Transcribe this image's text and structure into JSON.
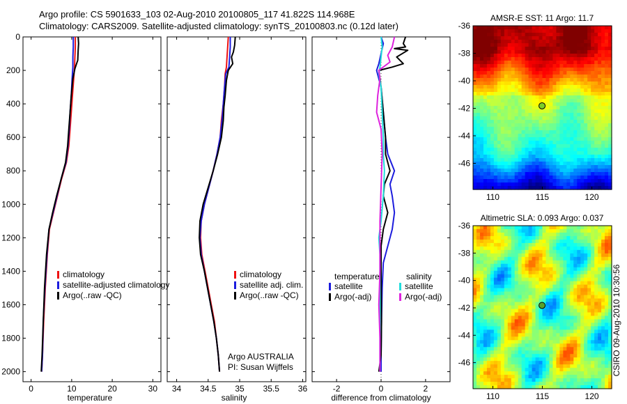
{
  "header": {
    "line1": "Argo profile: CS 5901633_103 02-Aug-2010 20100805_117 41.822S 114.968E",
    "line2": "Climatology: CARS2009. Satellite-adjusted climatology: synTS_20100803.nc (0.12d later)"
  },
  "side_label": "CSIRO 09-Aug-2010 10:30:56",
  "colors": {
    "climatology": "#ee1111",
    "satellite": "#1c1cdd",
    "argo": "#000000",
    "cyan": "#22dddd",
    "magenta": "#dd22dd"
  },
  "chart_data": [
    {
      "type": "line",
      "name": "temperature-profile",
      "xlabel": "temperature",
      "xlim": [
        -2,
        32
      ],
      "ylim": [
        2060,
        0
      ],
      "xticks": [
        "0",
        "10",
        "20",
        "30"
      ],
      "yticks": [
        "0",
        "200",
        "400",
        "600",
        "800",
        "1000",
        "1200",
        "1400",
        "1600",
        "1800",
        "2000"
      ],
      "legend": [
        "climatology",
        "satellite-adjusted climatology",
        "Argo(..raw -QC)"
      ],
      "series": [
        {
          "name": "climatology",
          "color_key": "climatology",
          "points": [
            [
              10.9,
              0
            ],
            [
              10.9,
              60
            ],
            [
              10.8,
              120
            ],
            [
              10.7,
              180
            ],
            [
              10.5,
              250
            ],
            [
              10.2,
              350
            ],
            [
              9.9,
              450
            ],
            [
              9.6,
              550
            ],
            [
              9.3,
              650
            ],
            [
              8.7,
              750
            ],
            [
              7.5,
              850
            ],
            [
              6.5,
              950
            ],
            [
              5.5,
              1050
            ],
            [
              4.5,
              1150
            ],
            [
              4.0,
              1300
            ],
            [
              3.5,
              1500
            ],
            [
              3.1,
              1700
            ],
            [
              2.8,
              1900
            ],
            [
              2.6,
              2000
            ]
          ]
        },
        {
          "name": "satellite-adjusted climatology",
          "color_key": "satellite",
          "points": [
            [
              10.4,
              0
            ],
            [
              10.4,
              60
            ],
            [
              10.3,
              120
            ],
            [
              10.3,
              180
            ],
            [
              10.1,
              250
            ],
            [
              9.9,
              350
            ],
            [
              9.6,
              450
            ],
            [
              9.4,
              550
            ],
            [
              9.1,
              650
            ],
            [
              8.6,
              750
            ],
            [
              7.4,
              850
            ],
            [
              6.4,
              950
            ],
            [
              5.4,
              1050
            ],
            [
              4.4,
              1150
            ],
            [
              3.9,
              1300
            ],
            [
              3.4,
              1500
            ],
            [
              3.0,
              1700
            ],
            [
              2.8,
              1900
            ],
            [
              2.6,
              2000
            ]
          ]
        },
        {
          "name": "Argo(..raw -QC)",
          "color_key": "argo",
          "points": [
            [
              11.6,
              0
            ],
            [
              11.7,
              40
            ],
            [
              11.6,
              80
            ],
            [
              11.5,
              140
            ],
            [
              11.2,
              160
            ],
            [
              10.8,
              190
            ],
            [
              10.3,
              250
            ],
            [
              9.9,
              350
            ],
            [
              9.6,
              450
            ],
            [
              9.3,
              550
            ],
            [
              9.0,
              650
            ],
            [
              8.5,
              750
            ],
            [
              7.4,
              850
            ],
            [
              6.3,
              950
            ],
            [
              5.3,
              1050
            ],
            [
              4.4,
              1150
            ],
            [
              3.8,
              1300
            ],
            [
              3.3,
              1500
            ],
            [
              3.0,
              1700
            ],
            [
              2.7,
              1900
            ],
            [
              2.5,
              2000
            ]
          ]
        }
      ]
    },
    {
      "type": "line",
      "name": "salinity-profile",
      "xlabel": "salinity",
      "xlim": [
        33.85,
        36.05
      ],
      "ylim": [
        2060,
        0
      ],
      "xticks": [
        "34",
        "34.5",
        "35",
        "35.5",
        "36"
      ],
      "legend": [
        "climatology",
        "satellite adj. clim.",
        "Argo(..raw -QC)"
      ],
      "annotation": [
        "Argo AUSTRALIA",
        "PI: Susan Wijffels"
      ],
      "series": [
        {
          "name": "climatology",
          "color_key": "climatology",
          "points": [
            [
              34.82,
              0
            ],
            [
              34.81,
              60
            ],
            [
              34.8,
              120
            ],
            [
              34.79,
              180
            ],
            [
              34.77,
              220
            ],
            [
              34.76,
              300
            ],
            [
              34.74,
              400
            ],
            [
              34.71,
              500
            ],
            [
              34.69,
              600
            ],
            [
              34.64,
              700
            ],
            [
              34.58,
              800
            ],
            [
              34.51,
              900
            ],
            [
              34.44,
              1000
            ],
            [
              34.39,
              1100
            ],
            [
              34.38,
              1200
            ],
            [
              34.4,
              1300
            ],
            [
              34.45,
              1400
            ],
            [
              34.5,
              1500
            ],
            [
              34.55,
              1600
            ],
            [
              34.6,
              1700
            ],
            [
              34.63,
              1800
            ],
            [
              34.66,
              1900
            ],
            [
              34.68,
              2000
            ]
          ]
        },
        {
          "name": "satellite adj. clim.",
          "color_key": "satellite",
          "points": [
            [
              34.85,
              0
            ],
            [
              34.85,
              60
            ],
            [
              34.84,
              120
            ],
            [
              34.83,
              180
            ],
            [
              34.78,
              220
            ],
            [
              34.76,
              300
            ],
            [
              34.74,
              400
            ],
            [
              34.72,
              500
            ],
            [
              34.69,
              600
            ],
            [
              34.64,
              700
            ],
            [
              34.58,
              800
            ],
            [
              34.51,
              900
            ],
            [
              34.44,
              1000
            ],
            [
              34.39,
              1100
            ],
            [
              34.37,
              1200
            ],
            [
              34.39,
              1300
            ],
            [
              34.44,
              1400
            ],
            [
              34.49,
              1500
            ],
            [
              34.54,
              1600
            ],
            [
              34.59,
              1700
            ],
            [
              34.63,
              1800
            ],
            [
              34.66,
              1900
            ],
            [
              34.68,
              2000
            ]
          ]
        },
        {
          "name": "Argo(..raw -QC)",
          "color_key": "argo",
          "points": [
            [
              34.93,
              0
            ],
            [
              34.92,
              50
            ],
            [
              34.9,
              90
            ],
            [
              34.87,
              120
            ],
            [
              34.89,
              160
            ],
            [
              34.82,
              200
            ],
            [
              34.79,
              260
            ],
            [
              34.77,
              350
            ],
            [
              34.75,
              420
            ],
            [
              34.74,
              500
            ],
            [
              34.71,
              600
            ],
            [
              34.65,
              700
            ],
            [
              34.58,
              800
            ],
            [
              34.5,
              900
            ],
            [
              34.42,
              1000
            ],
            [
              34.37,
              1100
            ],
            [
              34.36,
              1200
            ],
            [
              34.38,
              1300
            ],
            [
              34.44,
              1400
            ],
            [
              34.49,
              1500
            ],
            [
              34.54,
              1600
            ],
            [
              34.59,
              1700
            ],
            [
              34.63,
              1800
            ],
            [
              34.66,
              1900
            ],
            [
              34.68,
              2000
            ]
          ]
        }
      ]
    },
    {
      "type": "line",
      "name": "difference-profile",
      "xlabel": "difference from climatology",
      "xlim": [
        -3.1,
        3.1
      ],
      "ylim": [
        2060,
        0
      ],
      "xticks": [
        "-2",
        "0",
        "2"
      ],
      "legend_groups": [
        {
          "title": "temperature",
          "items": [
            "satellite",
            "Argo(-adj)"
          ]
        },
        {
          "title": "salinity",
          "items": [
            "satellite",
            "Argo(-adj)"
          ]
        }
      ],
      "series": [
        {
          "name": "temperature satellite",
          "color_key": "satellite",
          "points": [
            [
              0.0,
              0
            ],
            [
              0.1,
              40
            ],
            [
              0.0,
              100
            ],
            [
              -0.1,
              160
            ],
            [
              -0.2,
              200
            ],
            [
              0.0,
              300
            ],
            [
              0.1,
              450
            ],
            [
              0.2,
              600
            ],
            [
              0.3,
              700
            ],
            [
              0.6,
              800
            ],
            [
              0.4,
              880
            ],
            [
              0.5,
              950
            ],
            [
              0.6,
              1050
            ],
            [
              0.5,
              1150
            ],
            [
              0.3,
              1250
            ],
            [
              0.1,
              1350
            ],
            [
              0.05,
              1500
            ],
            [
              0.02,
              1700
            ],
            [
              0.0,
              1900
            ],
            [
              0.0,
              2000
            ]
          ]
        },
        {
          "name": "temperature Argo(-adj)",
          "color_key": "argo",
          "points": [
            [
              1.1,
              0
            ],
            [
              1.0,
              40
            ],
            [
              1.1,
              60
            ],
            [
              0.6,
              70
            ],
            [
              1.2,
              80
            ],
            [
              0.7,
              120
            ],
            [
              1.0,
              160
            ],
            [
              0.5,
              180
            ],
            [
              -0.1,
              200
            ],
            [
              0.0,
              300
            ],
            [
              0.1,
              450
            ],
            [
              0.2,
              600
            ],
            [
              0.2,
              700
            ],
            [
              0.4,
              800
            ],
            [
              0.15,
              880
            ],
            [
              0.1,
              950
            ],
            [
              0.3,
              1050
            ],
            [
              0.1,
              1150
            ],
            [
              0.0,
              1250
            ],
            [
              0.0,
              1400
            ],
            [
              0.02,
              1700
            ],
            [
              0.0,
              1900
            ],
            [
              -0.1,
              2000
            ]
          ]
        },
        {
          "name": "salinity satellite",
          "color_key": "cyan",
          "points": [
            [
              0.0,
              0
            ],
            [
              0.05,
              60
            ],
            [
              0.0,
              120
            ],
            [
              -0.05,
              180
            ],
            [
              -0.1,
              220
            ],
            [
              0.0,
              300
            ],
            [
              0.05,
              450
            ],
            [
              0.1,
              600
            ],
            [
              0.1,
              700
            ],
            [
              0.15,
              800
            ],
            [
              0.1,
              950
            ],
            [
              0.0,
              1100
            ],
            [
              -0.1,
              1200
            ],
            [
              -0.05,
              1300
            ],
            [
              -0.05,
              1500
            ],
            [
              -0.05,
              1700
            ],
            [
              -0.05,
              1900
            ],
            [
              -0.05,
              2000
            ]
          ]
        },
        {
          "name": "salinity Argo(-adj)",
          "color_key": "magenta",
          "points": [
            [
              0.6,
              0
            ],
            [
              0.5,
              60
            ],
            [
              0.3,
              110
            ],
            [
              0.4,
              150
            ],
            [
              -0.1,
              200
            ],
            [
              -0.05,
              250
            ],
            [
              -0.15,
              350
            ],
            [
              -0.2,
              450
            ],
            [
              0.0,
              550
            ],
            [
              0.05,
              700
            ],
            [
              0.0,
              900
            ],
            [
              -0.05,
              1100
            ],
            [
              -0.05,
              1200
            ],
            [
              -0.05,
              1400
            ],
            [
              -0.1,
              1600
            ],
            [
              -0.05,
              1800
            ],
            [
              -0.05,
              2000
            ]
          ]
        }
      ]
    },
    {
      "type": "heatmap",
      "name": "amsr-sst-map",
      "title": "AMSR-E SST: 11 Argo: 11.7",
      "xlim": [
        108,
        122
      ],
      "ylim": [
        -47.9,
        -36
      ],
      "xticks": [
        "110",
        "115",
        "120"
      ],
      "yticks": [
        "-36",
        "-38",
        "-40",
        "-42",
        "-44",
        "-46"
      ],
      "colormap": "jet",
      "marker": {
        "lon": 114.968,
        "lat": -41.822,
        "color": "#7ccd2a"
      }
    },
    {
      "type": "heatmap",
      "name": "altimetric-sla-map",
      "title": "Altimetric SLA: 0.093 Argo: 0.037",
      "xlim": [
        108,
        122
      ],
      "ylim": [
        -47.9,
        -36
      ],
      "xticks": [
        "110",
        "115",
        "120"
      ],
      "yticks": [
        "-36",
        "-38",
        "-40",
        "-42",
        "-44",
        "-46"
      ],
      "colormap": "jet",
      "marker": {
        "lon": 114.968,
        "lat": -41.822,
        "color": "#5aa02a"
      }
    }
  ]
}
